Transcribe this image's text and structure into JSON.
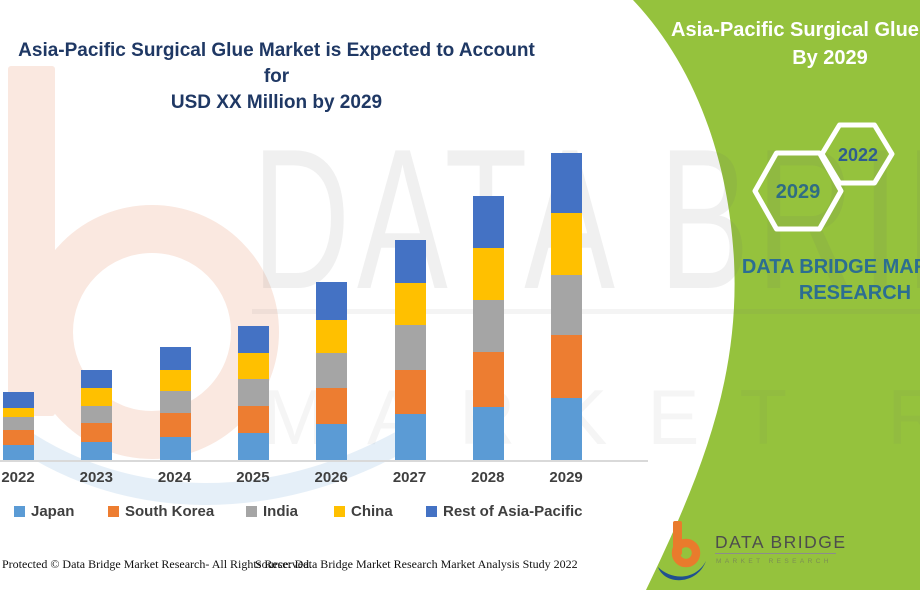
{
  "header": {
    "title_line1": "Asia-Pacific Surgical Glue Market is Expected to Account for",
    "title_line2": "USD XX Million by 2029"
  },
  "side_panel": {
    "title_line1": "Asia-Pacific Surgical Glue Market",
    "title_line2": "By 2029",
    "hexagons": [
      {
        "label": "2029"
      },
      {
        "label": "2022"
      }
    ],
    "brand_line1": "DATA BRIDGE MARKET",
    "brand_line2": "RESEARCH"
  },
  "chart_data": {
    "type": "bar",
    "stacked": true,
    "title": "Asia-Pacific Surgical Glue Market is Expected to Account for USD XX Million by 2029",
    "xlabel": "",
    "ylabel": "",
    "units": "USD Million (actual values masked as XX; series values are relative estimates from bar heights)",
    "value_axis_visible": false,
    "grid": false,
    "legend_position": "bottom",
    "categories": [
      "2022",
      "2023",
      "2024",
      "2025",
      "2026",
      "2027",
      "2028",
      "2029"
    ],
    "series": [
      {
        "name": "Japan",
        "color": "#5B9BD5",
        "values": [
          15,
          18,
          23,
          27,
          36,
          46,
          53,
          62
        ]
      },
      {
        "name": "South Korea",
        "color": "#ED7D31",
        "values": [
          15,
          19,
          24,
          27,
          36,
          44,
          55,
          63
        ]
      },
      {
        "name": "India",
        "color": "#A5A5A5",
        "values": [
          13,
          17,
          22,
          27,
          35,
          45,
          52,
          60
        ]
      },
      {
        "name": "China",
        "color": "#FFC000",
        "values": [
          9,
          18,
          21,
          26,
          33,
          42,
          52,
          62
        ]
      },
      {
        "name": "Rest of Asia-Pacific",
        "color": "#4472C4",
        "values": [
          16,
          18,
          23,
          27,
          38,
          43,
          52,
          60
        ]
      }
    ],
    "totals": [
      68,
      90,
      113,
      134,
      178,
      220,
      264,
      307
    ]
  },
  "watermark": {
    "text_line1": "DATA BRIDGE",
    "text_line2": "MARKET RESEARCH"
  },
  "logo": {
    "name_text": "DATA BRIDGE",
    "subtext": "MARKET RESEARCH"
  },
  "footer": {
    "protected": "Protected © Data Bridge Market Research- All Rights Reserved.",
    "source": "Source: Data Bridge Market Research Market Analysis Study 2022"
  },
  "colors": {
    "title_blue": "#1F3864",
    "panel_green": "#95C23D",
    "panel_text_teal": "#2C6E91",
    "hex_2029_text": "#2F6D83",
    "hex_2022_text": "#2F5D8F",
    "axis_line": "#D9D9D9",
    "label_gray": "#3F3F3F",
    "logo_orange": "#E97B2C",
    "logo_blue": "#20508F"
  }
}
